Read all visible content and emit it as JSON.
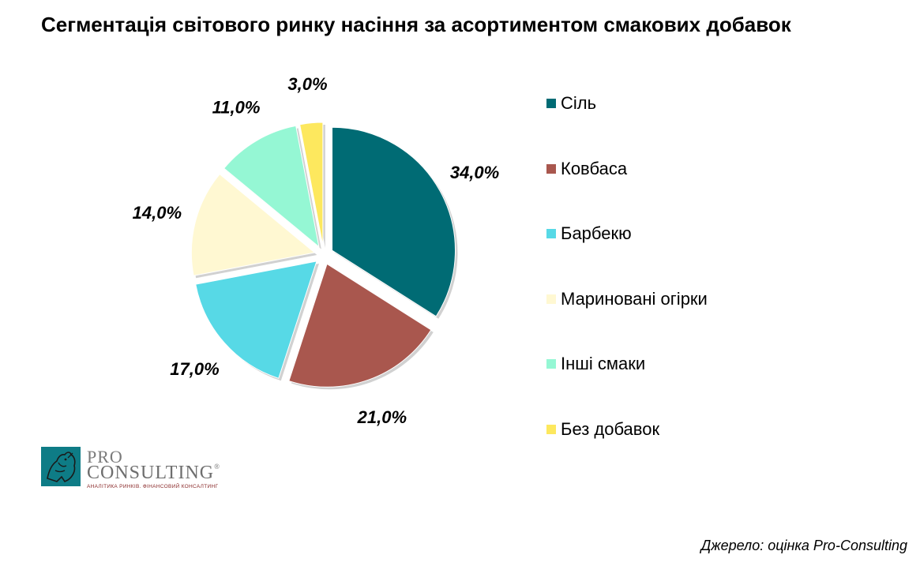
{
  "title": "Сегментація світового ринку насіння за асортиментом смакових добавок",
  "chart_data": {
    "type": "pie",
    "title": "Сегментація світового ринку насіння за асортиментом смакових добавок",
    "categories": [
      "Сіль",
      "Ковбаса",
      "Барбекю",
      "Мариновані огірки",
      "Інші смаки",
      "Без добавок"
    ],
    "values": [
      34.0,
      21.0,
      17.0,
      14.0,
      11.0,
      3.0
    ],
    "data_labels": [
      "34,0%",
      "21,0%",
      "17,0%",
      "14,0%",
      "11,0%",
      "3,0%"
    ],
    "colors": [
      "#006b74",
      "#a9574e",
      "#57d9e6",
      "#fff8d2",
      "#95f7d4",
      "#fde85e"
    ],
    "exploded": true,
    "legend_position": "right"
  },
  "logo": {
    "line1": "PRO",
    "line2": "CONSULTING",
    "registered": "®",
    "tagline": "АНАЛІТИКА РИНКІВ. ФІНАНСОВИЙ КОНСАЛТИНГ"
  },
  "source": "Джерело: оцінка Pro-Consulting"
}
